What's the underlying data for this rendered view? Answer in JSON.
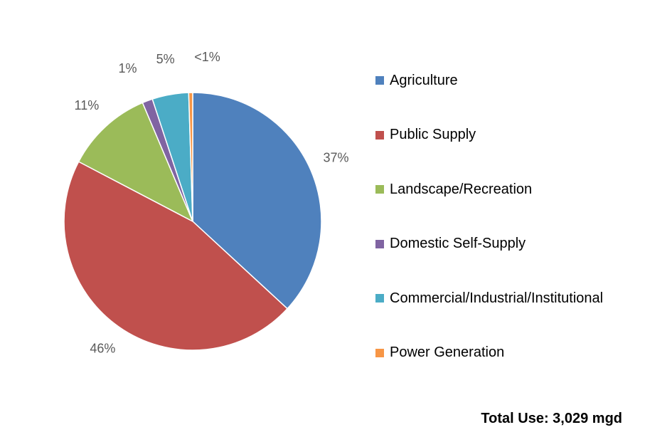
{
  "chart_data": {
    "type": "pie",
    "categories": [
      "Agriculture",
      "Public Supply",
      "Landscape/Recreation",
      "Domestic Self-Supply",
      "Commercial/Industrial/Institutional",
      "Power Generation"
    ],
    "values": [
      37,
      46,
      11,
      1.3,
      4.6,
      0.5
    ],
    "data_labels": [
      "37%",
      "46%",
      "11%",
      "1%",
      "5%",
      "<1%"
    ],
    "colors": [
      "#4F81BD",
      "#C0504D",
      "#9BBB59",
      "#8064A2",
      "#4BACC6",
      "#F79646"
    ],
    "legend": "right"
  },
  "total_label": "Total Use: 3,029 mgd"
}
